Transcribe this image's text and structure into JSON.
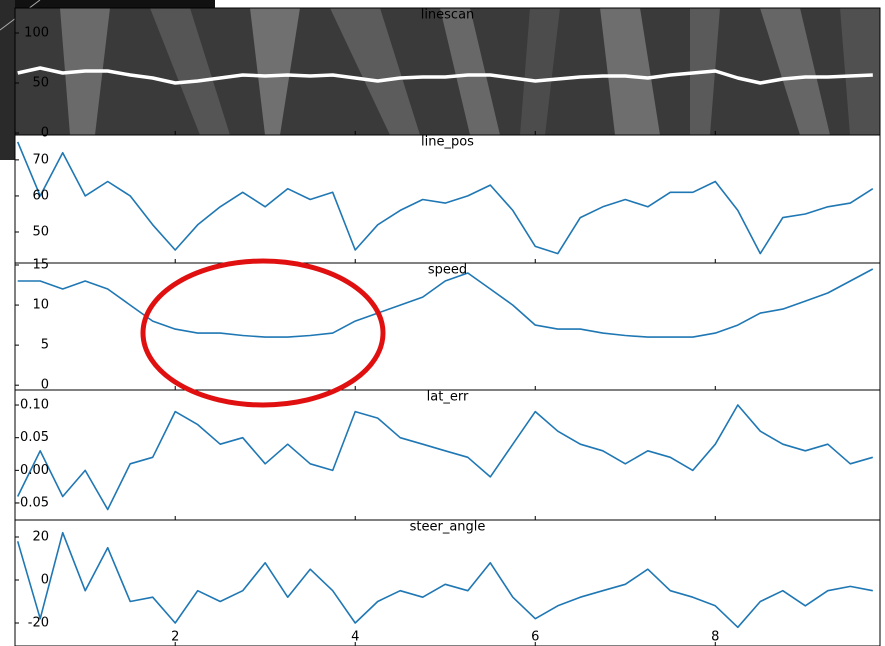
{
  "chart_data": [
    {
      "type": "line",
      "title": "linescan",
      "color": "#ffffff",
      "x": [
        0.25,
        0.5,
        0.75,
        1.0,
        1.25,
        1.5,
        1.75,
        2.0,
        2.25,
        2.5,
        2.75,
        3.0,
        3.25,
        3.5,
        3.75,
        4.0,
        4.25,
        4.5,
        4.75,
        5.0,
        5.25,
        5.5,
        5.75,
        6.0,
        6.25,
        6.5,
        6.75,
        7.0,
        7.25,
        7.5,
        7.75,
        8.0,
        8.25,
        8.5,
        8.75,
        9.0,
        9.25,
        9.5,
        9.75
      ],
      "values": [
        60,
        65,
        60,
        62,
        62,
        58,
        55,
        50,
        52,
        55,
        58,
        57,
        58,
        57,
        58,
        55,
        52,
        55,
        56,
        56,
        58,
        58,
        55,
        52,
        54,
        56,
        57,
        57,
        55,
        58,
        60,
        62,
        55,
        50,
        54,
        56,
        56,
        57,
        58
      ],
      "xlim": [
        0.22,
        9.83
      ],
      "ylim": [
        -2,
        125
      ],
      "yticks": [
        0,
        50,
        100
      ]
    },
    {
      "type": "line",
      "title": "line_pos",
      "color": "#1f77b4",
      "x": [
        0.25,
        0.5,
        0.75,
        1.0,
        1.25,
        1.5,
        1.75,
        2.0,
        2.25,
        2.5,
        2.75,
        3.0,
        3.25,
        3.5,
        3.75,
        4.0,
        4.25,
        4.5,
        4.75,
        5.0,
        5.25,
        5.5,
        5.75,
        6.0,
        6.25,
        6.5,
        6.75,
        7.0,
        7.25,
        7.5,
        7.75,
        8.0,
        8.25,
        8.5,
        8.75,
        9.0,
        9.25,
        9.5,
        9.75
      ],
      "values": [
        75,
        60,
        72,
        60,
        64,
        60,
        52,
        45,
        52,
        57,
        61,
        57,
        62,
        59,
        61,
        45,
        52,
        56,
        59,
        58,
        60,
        63,
        56,
        46,
        44,
        54,
        57,
        59,
        57,
        61,
        61,
        64,
        56,
        44,
        54,
        55,
        57,
        58,
        62
      ],
      "xlim": [
        0.22,
        9.83
      ],
      "ylim": [
        41.4,
        76.9
      ],
      "yticks": [
        50,
        60,
        70
      ]
    },
    {
      "type": "line",
      "title": "speed",
      "color": "#1f77b4",
      "x": [
        0.25,
        0.5,
        0.75,
        1.0,
        1.25,
        1.5,
        1.75,
        2.0,
        2.25,
        2.5,
        2.75,
        3.0,
        3.25,
        3.5,
        3.75,
        4.0,
        4.25,
        4.5,
        4.75,
        5.0,
        5.25,
        5.5,
        5.75,
        6.0,
        6.25,
        6.5,
        6.75,
        7.0,
        7.25,
        7.5,
        7.75,
        8.0,
        8.25,
        8.5,
        8.75,
        9.0,
        9.25,
        9.5,
        9.75
      ],
      "values": [
        13,
        13,
        12,
        13,
        12,
        10,
        8,
        7,
        6.5,
        6.5,
        6.2,
        6,
        6,
        6.2,
        6.5,
        8,
        9,
        10,
        11,
        13,
        14,
        12,
        10,
        7.5,
        7,
        7,
        6.5,
        6.2,
        6,
        6,
        6,
        6.5,
        7.5,
        9,
        9.5,
        10.5,
        11.5,
        13,
        14.5
      ],
      "xlim": [
        0.22,
        9.83
      ],
      "ylim": [
        -0.6,
        15.25
      ],
      "yticks": [
        0,
        5,
        10,
        15
      ]
    },
    {
      "type": "line",
      "title": "lat_err",
      "color": "#1f77b4",
      "x": [
        0.25,
        0.5,
        0.75,
        1.0,
        1.25,
        1.5,
        1.75,
        2.0,
        2.25,
        2.5,
        2.75,
        3.0,
        3.25,
        3.5,
        3.75,
        4.0,
        4.25,
        4.5,
        4.75,
        5.0,
        5.25,
        5.5,
        5.75,
        6.0,
        6.25,
        6.5,
        6.75,
        7.0,
        7.25,
        7.5,
        7.75,
        8.0,
        8.25,
        8.5,
        8.75,
        9.0,
        9.25,
        9.5,
        9.75
      ],
      "values": [
        -0.04,
        0.03,
        -0.04,
        0.0,
        -0.06,
        0.01,
        0.02,
        0.09,
        0.07,
        0.04,
        0.05,
        0.01,
        0.04,
        0.01,
        0.0,
        0.09,
        0.08,
        0.05,
        0.04,
        0.03,
        0.02,
        -0.01,
        0.04,
        0.09,
        0.06,
        0.04,
        0.03,
        0.01,
        0.03,
        0.02,
        0.0,
        0.04,
        0.1,
        0.06,
        0.04,
        0.03,
        0.04,
        0.01,
        0.02
      ],
      "xlim": [
        0.22,
        9.83
      ],
      "ylim": [
        -0.076,
        0.123
      ],
      "yticks": [
        -0.05,
        {
          "value": 0.0,
          "label": "0.00"
        },
        0.05,
        {
          "value": 0.1,
          "label": "0.10"
        }
      ]
    },
    {
      "type": "line",
      "title": "steer_angle",
      "color": "#1f77b4",
      "x": [
        0.25,
        0.5,
        0.75,
        1.0,
        1.25,
        1.5,
        1.75,
        2.0,
        2.25,
        2.5,
        2.75,
        3.0,
        3.25,
        3.5,
        3.75,
        4.0,
        4.25,
        4.5,
        4.75,
        5.0,
        5.25,
        5.5,
        5.75,
        6.0,
        6.25,
        6.5,
        6.75,
        7.0,
        7.25,
        7.5,
        7.75,
        8.0,
        8.25,
        8.5,
        8.75,
        9.0,
        9.25,
        9.5,
        9.75
      ],
      "values": [
        18,
        -18,
        22,
        -5,
        15,
        -10,
        -8,
        -20,
        -5,
        -10,
        -5,
        8,
        -8,
        5,
        -5,
        -20,
        -10,
        -5,
        -8,
        -2,
        -5,
        8,
        -8,
        -18,
        -12,
        -8,
        -5,
        -2,
        5,
        -5,
        -8,
        -12,
        -22,
        -10,
        -5,
        -12,
        -5,
        -3,
        -5
      ],
      "xlim": [
        0.22,
        9.83
      ],
      "ylim": [
        -30.7,
        27.9
      ],
      "yticks": [
        -20,
        0,
        20
      ],
      "xticks": [
        2,
        4,
        6,
        8
      ]
    }
  ]
}
